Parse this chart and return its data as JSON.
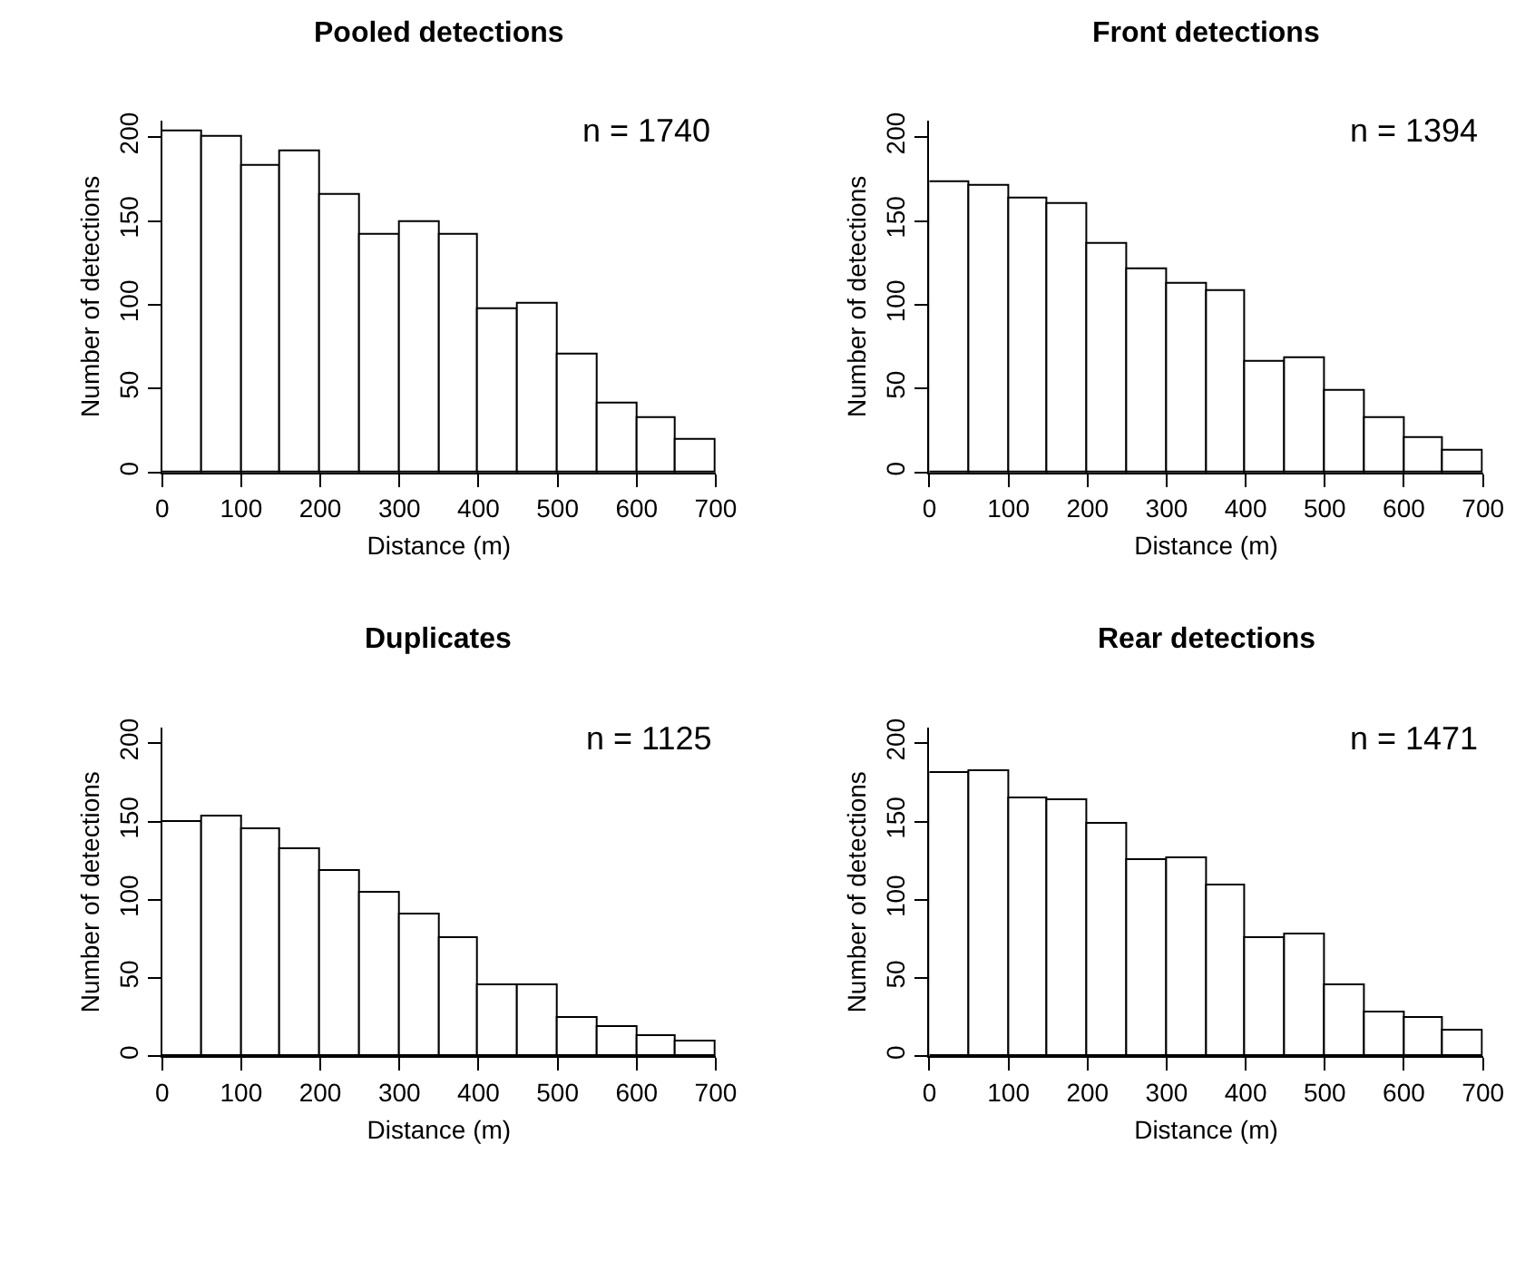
{
  "chart_data": [
    {
      "type": "histogram",
      "title": "Pooled detections",
      "xlabel": "Distance (m)",
      "ylabel": "Number of detections",
      "annotations": [
        "n = 1740"
      ],
      "color": "#ffffff",
      "bins": [
        0,
        50,
        100,
        150,
        200,
        250,
        300,
        350,
        400,
        450,
        500,
        550,
        600,
        650,
        700
      ],
      "values": [
        204,
        200,
        183,
        192,
        166,
        142,
        149,
        142,
        97,
        101,
        70,
        41,
        33,
        20
      ],
      "xlim": [
        0,
        700
      ],
      "xticks": [
        0,
        100,
        200,
        300,
        400,
        500,
        600,
        700
      ],
      "ylim": [
        0,
        210
      ],
      "yticks": [
        0,
        50,
        100,
        150,
        200
      ]
    },
    {
      "type": "histogram",
      "title": "Front detections",
      "xlabel": "Distance (m)",
      "ylabel": "Number of detections",
      "annotations": [
        "n = 1394"
      ],
      "color": "#ffffff",
      "bins": [
        0,
        50,
        100,
        150,
        200,
        250,
        300,
        350,
        400,
        450,
        500,
        550,
        600,
        650,
        700
      ],
      "values": [
        173,
        171,
        163,
        160,
        136,
        121,
        113,
        108,
        66,
        68,
        49,
        32,
        21,
        13
      ],
      "xlim": [
        0,
        700
      ],
      "xticks": [
        0,
        100,
        200,
        300,
        400,
        500,
        600,
        700
      ],
      "ylim": [
        0,
        210
      ],
      "yticks": [
        0,
        50,
        100,
        150,
        200
      ]
    },
    {
      "type": "histogram",
      "title": "Duplicates",
      "xlabel": "Distance (m)",
      "ylabel": "Number of detections",
      "annotations": [
        "n = 1125"
      ],
      "color": "#ffffff",
      "bins": [
        0,
        50,
        100,
        150,
        200,
        250,
        300,
        350,
        400,
        450,
        500,
        550,
        600,
        650,
        700
      ],
      "values": [
        150,
        153,
        145,
        132,
        119,
        104,
        91,
        75,
        45,
        45,
        25,
        19,
        13,
        9
      ],
      "xlim": [
        0,
        700
      ],
      "xticks": [
        0,
        100,
        200,
        300,
        400,
        500,
        600,
        700
      ],
      "ylim": [
        0,
        210
      ],
      "yticks": [
        0,
        50,
        100,
        150,
        200
      ]
    },
    {
      "type": "histogram",
      "title": "Rear detections",
      "xlabel": "Distance (m)",
      "ylabel": "Number of detections",
      "annotations": [
        "n = 1471"
      ],
      "color": "#ffffff",
      "bins": [
        0,
        50,
        100,
        150,
        200,
        250,
        300,
        350,
        400,
        450,
        500,
        550,
        600,
        650,
        700
      ],
      "values": [
        181,
        182,
        165,
        164,
        149,
        125,
        127,
        109,
        76,
        78,
        46,
        28,
        25,
        16
      ],
      "xlim": [
        0,
        700
      ],
      "xticks": [
        0,
        100,
        200,
        300,
        400,
        500,
        600,
        700
      ],
      "ylim": [
        0,
        210
      ],
      "yticks": [
        0,
        50,
        100,
        150,
        200
      ]
    }
  ]
}
